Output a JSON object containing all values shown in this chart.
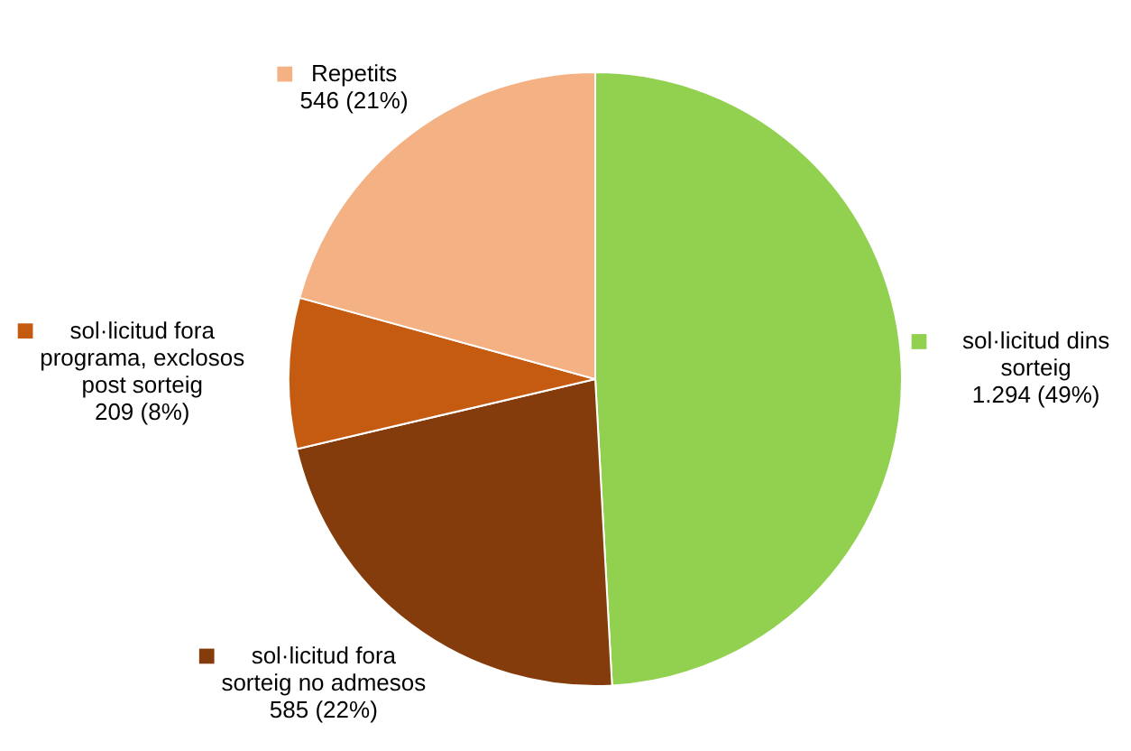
{
  "chart_data": {
    "type": "pie",
    "categories": [
      "sol·licitud dins sorteig",
      "sol·licitud fora sorteig no admesos",
      "sol·licitud fora programa, exclosos post sorteig",
      "Repetits"
    ],
    "values": [
      1294,
      585,
      209,
      546
    ],
    "colors": [
      "#92d050",
      "#843c0c",
      "#c55a11",
      "#f4b183"
    ],
    "value_labels": [
      "1.294 (49%)",
      "585 (22%)",
      "209 (8%)",
      "546 (21%)"
    ],
    "legend": "bottom left"
  }
}
